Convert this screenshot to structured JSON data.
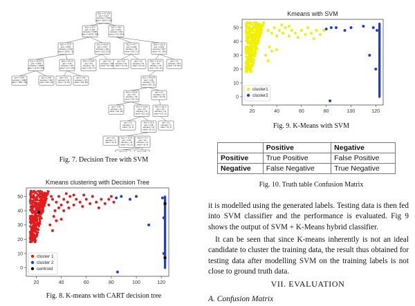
{
  "fig7": {
    "caption": "Fig. 7.  Decision Tree with SVM",
    "nodes": [
      {
        "lines": [
          "X[0] <= 31.135",
          "gini = 0.427",
          "samples = 3000",
          "value = [2074, 926]"
        ]
      },
      {
        "lines": [
          "X[0] <= 26.4",
          "gini = 0.245",
          "samples = 2398",
          "value = [2055, 343]"
        ]
      },
      {
        "lines": [
          "X[0] <= 38.6",
          "gini = 0.061",
          "samples = 602",
          "value = [19, 583]"
        ]
      },
      {
        "lines": [
          "X[0] <= 13.37",
          "gini = 0.065",
          "samples = 2106",
          "value = [2035, 71]"
        ]
      },
      {
        "lines": [
          "X[1] <= 40.05",
          "gini = 0.127",
          "samples = 292",
          "value = [20, 272]"
        ]
      },
      {
        "lines": [
          "X[1] <= 47.7",
          "gini = 0.499",
          "samples = 35",
          "value = [18, 17]"
        ]
      },
      {
        "lines": [
          "X[0] <= 122.5",
          "gini = 0.004",
          "samples = 567",
          "value = [1, 566]"
        ]
      },
      {
        "lines": [
          "X[1] <= 48.975",
          "gini = 0.499",
          "samples = 1888",
          "value = [1019, 869]"
        ]
      },
      {
        "lines": [
          "X[0] <= 46.15",
          "gini = 0.19",
          "samples = 218",
          "value = [23, 195]"
        ]
      },
      {
        "lines": [
          "X[0] <= 0.925",
          "gini = 0.5",
          "samples = 96",
          "value = [49, 47]"
        ]
      },
      {
        "lines": [
          "gini = 0.0",
          "samples = 196",
          "value = [0, 196]"
        ]
      },
      {
        "lines": [
          "gini = 0.0",
          "samples = 14",
          "value = [0, 14]"
        ]
      },
      {
        "lines": [
          "gini = 0.0",
          "samples = 21",
          "value = [0, 21]"
        ]
      },
      {
        "lines": [
          "X[0] <= 121.5",
          "gini = 0.5",
          "samples = 40",
          "value = [20, 20]"
        ]
      },
      {
        "lines": [
          "gini = 0.0",
          "samples = 527",
          "value = [0, 527]"
        ]
      },
      {
        "lines": [
          "gini = 0.493",
          "samples = 1688",
          "value = [950, 738]"
        ]
      },
      {
        "lines": [
          "gini = 0.494",
          "samples = 200",
          "value = [89, 111]"
        ]
      },
      {
        "lines": [
          "gini = 0.0",
          "samples = 81",
          "value = [0, 81]"
        ]
      },
      {
        "lines": [
          "gini = 0.46",
          "samples = 137",
          "value = [49, 88]"
        ]
      },
      {
        "lines": [
          "X[1] <= 44.575",
          "gini = 0.48",
          "samples = 50",
          "value = [20, 30]"
        ]
      },
      {
        "lines": [
          "X[0] <= 83.05",
          "gini = 0.5",
          "samples = 46",
          "value = [23, 23]"
        ]
      },
      {
        "lines": [
          "gini = 0.0",
          "samples = 10",
          "value = [0, 10]"
        ]
      },
      {
        "lines": [
          "gini = 0.49",
          "samples = 40",
          "value = [20, 20]"
        ]
      },
      {
        "lines": [
          "X[1] <= 20.05",
          "gini = 0.5",
          "samples = 24",
          "value = [12, 12]"
        ]
      },
      {
        "lines": [
          "X[0] <= 110.0",
          "gini = 0.5",
          "samples = 22",
          "value = [11, 11]"
        ]
      },
      {
        "lines": [
          "gini = 0.0",
          "samples = 4",
          "value = [4, 0]"
        ]
      },
      {
        "lines": [
          "X[0] <= 53.6",
          "gini = 0.48",
          "samples = 20",
          "value = [8, 12]"
        ]
      },
      {
        "lines": [
          "gini = 0.0",
          "samples = 6",
          "value = [0, 6]"
        ]
      },
      {
        "lines": [
          "X[1] <= 11.05",
          "gini = 0.49",
          "samples = 16",
          "value = [11, 5]"
        ]
      },
      {
        "lines": [
          "gini = 0.0",
          "samples = 3",
          "value = [3, 0]"
        ]
      },
      {
        "lines": [
          "X[0] <= 71.4",
          "gini = 0.5",
          "samples = 17",
          "value = [9, 8]"
        ]
      },
      {
        "lines": [
          "gini = 0.0",
          "samples = 2",
          "value = [0, 2]"
        ]
      },
      {
        "lines": [
          "gini = 0.49",
          "samples = 15",
          "value = [9, 6]"
        ]
      }
    ]
  },
  "fig8": {
    "caption": "Fig. 8.  K-means with CART decision tree",
    "chart_data": {
      "type": "scatter",
      "title": "Kmeans clustering with Decision Tree",
      "xlim": [
        12,
        126
      ],
      "ylim": [
        -6,
        56
      ],
      "xticks": [
        20,
        40,
        60,
        80,
        100,
        120
      ],
      "yticks": [
        0,
        10,
        20,
        30,
        40,
        50
      ],
      "legend": "bottom-left",
      "series": [
        {
          "name": "cluster 1",
          "color": "#e31a1c",
          "region": {
            "x": [
              15,
              30
            ],
            "y": [
              18,
              54
            ]
          },
          "points": [
            [
              33,
              48
            ],
            [
              36,
              46
            ],
            [
              38,
              50
            ],
            [
              40,
              44
            ],
            [
              42,
              48
            ],
            [
              45,
              46
            ],
            [
              47,
              50
            ],
            [
              50,
              44
            ],
            [
              52,
              48
            ],
            [
              55,
              46
            ],
            [
              57,
              43
            ],
            [
              60,
              48
            ],
            [
              63,
              45
            ],
            [
              65,
              50
            ],
            [
              68,
              46
            ],
            [
              70,
              42
            ],
            [
              72,
              48
            ],
            [
              75,
              45
            ],
            [
              78,
              48
            ],
            [
              80,
              50
            ],
            [
              82,
              46
            ],
            [
              35,
              40
            ],
            [
              38,
              42
            ],
            [
              42,
              40
            ],
            [
              46,
              42
            ],
            [
              34,
              36
            ],
            [
              36,
              33
            ],
            [
              40,
              34
            ],
            [
              31,
              30
            ],
            [
              33,
              26
            ],
            [
              30,
              44
            ],
            [
              32,
              50
            ],
            [
              44,
              52
            ],
            [
              50,
              51
            ],
            [
              58,
              51
            ],
            [
              28,
              52
            ]
          ]
        },
        {
          "name": "cluster 2",
          "color": "#1f3fd8",
          "points": [
            [
              84,
              49
            ],
            [
              88,
              50
            ],
            [
              95,
              48
            ],
            [
              100,
              50
            ],
            [
              85,
              -3
            ],
            [
              110,
              30
            ],
            [
              122,
              10
            ],
            [
              122,
              35
            ],
            [
              121,
              49
            ]
          ],
          "column": {
            "x": 123,
            "y": [
              0,
              50
            ]
          }
        },
        {
          "name": "centroid",
          "color": "#000000",
          "points": [
            [
              22,
              39
            ],
            [
              123,
              7
            ],
            [
              123,
              45
            ]
          ]
        }
      ]
    }
  },
  "fig9": {
    "caption": "Fig. 9.  K-Means with SVM",
    "chart_data": {
      "type": "scatter",
      "title": "Kmeans with SVM",
      "xlim": [
        12,
        126
      ],
      "ylim": [
        -6,
        56
      ],
      "xticks": [
        20,
        40,
        60,
        80,
        100,
        120
      ],
      "yticks": [
        0,
        10,
        20,
        30,
        40,
        50
      ],
      "legend": "bottom-left",
      "series": [
        {
          "name": "cluster1",
          "color": "#f0f000",
          "region": {
            "x": [
              15,
              30
            ],
            "y": [
              18,
              54
            ]
          },
          "points": [
            [
              33,
              48
            ],
            [
              36,
              46
            ],
            [
              38,
              50
            ],
            [
              40,
              44
            ],
            [
              42,
              48
            ],
            [
              45,
              46
            ],
            [
              47,
              50
            ],
            [
              50,
              44
            ],
            [
              52,
              48
            ],
            [
              55,
              46
            ],
            [
              57,
              43
            ],
            [
              60,
              48
            ],
            [
              63,
              45
            ],
            [
              65,
              50
            ],
            [
              68,
              46
            ],
            [
              70,
              42
            ],
            [
              72,
              48
            ],
            [
              75,
              45
            ],
            [
              78,
              48
            ],
            [
              34,
              36
            ],
            [
              36,
              33
            ],
            [
              31,
              30
            ],
            [
              33,
              26
            ],
            [
              40,
              34
            ],
            [
              44,
              52
            ],
            [
              50,
              51
            ]
          ]
        },
        {
          "name": "cluster2",
          "color": "#1f3fd8",
          "points": [
            [
              80,
              49
            ],
            [
              84,
              50
            ],
            [
              88,
              50
            ],
            [
              95,
              48
            ],
            [
              100,
              50
            ],
            [
              110,
              51
            ],
            [
              83,
              -3
            ],
            [
              115,
              30
            ],
            [
              120,
              20
            ],
            [
              121,
              48
            ],
            [
              118,
              50
            ]
          ],
          "column": {
            "x": 123,
            "y": [
              0,
              53
            ]
          }
        }
      ]
    }
  },
  "fig10": {
    "caption": "Fig. 10.  Truth table Confusion Matrix",
    "chart_data": {
      "type": "table",
      "header": [
        "",
        "Positive",
        "Negative"
      ],
      "rows": [
        [
          "Positive",
          "True Positive",
          "False Positive"
        ],
        [
          "Negative",
          "False Negative",
          "True Negative"
        ]
      ]
    }
  },
  "body": {
    "para1": "it is modelled using the generated labels. Testing data is then fed into SVM classifier and the performance is evaluated. Fig 9 shows the output of SVM + K-Means hybrid classifier.",
    "para2": "It can be seen that since K-means inherently is not an ideal candidate to cluster the training data, the result thus obtained for testing data after modelling SVM on the training labels is not close to ground truth data.",
    "section": "VII.  EVALUATION",
    "subsection": "A.  Confusion Matrix"
  }
}
